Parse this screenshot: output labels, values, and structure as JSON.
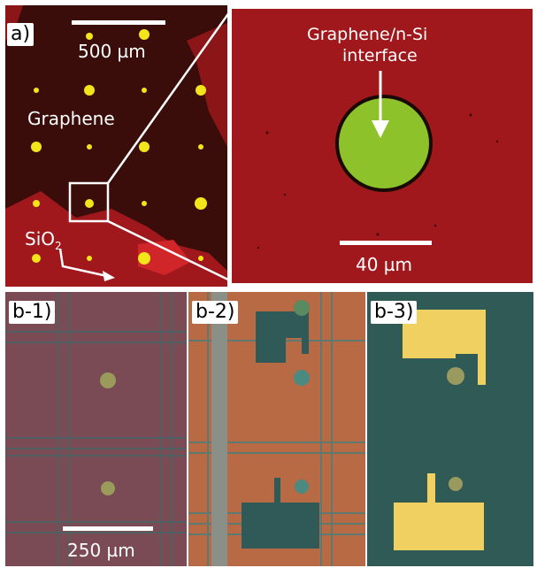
{
  "panel_a": {
    "label": "a)",
    "scale_label": "500 µm",
    "graphene_label": "Graphene",
    "sio2_label": "SiO",
    "sio2_subscript": "2"
  },
  "panel_zoom": {
    "interface_label_line1": "Graphene/n-Si",
    "interface_label_line2": "interface",
    "scale_label": "40 µm"
  },
  "panel_b1": {
    "label": "b-1)",
    "scale_label": "250 µm"
  },
  "panel_b2": {
    "label": "b-2)"
  },
  "panel_b3": {
    "label": "b-3)"
  },
  "colors": {
    "red_bg": "#a0181c",
    "dark_red": "#3a0d0a",
    "yellow_dot": "#f2e61a",
    "green_disk": "#8ec22a",
    "teal_bg": "#2f5a55",
    "gold_pad": "#f0d060"
  }
}
